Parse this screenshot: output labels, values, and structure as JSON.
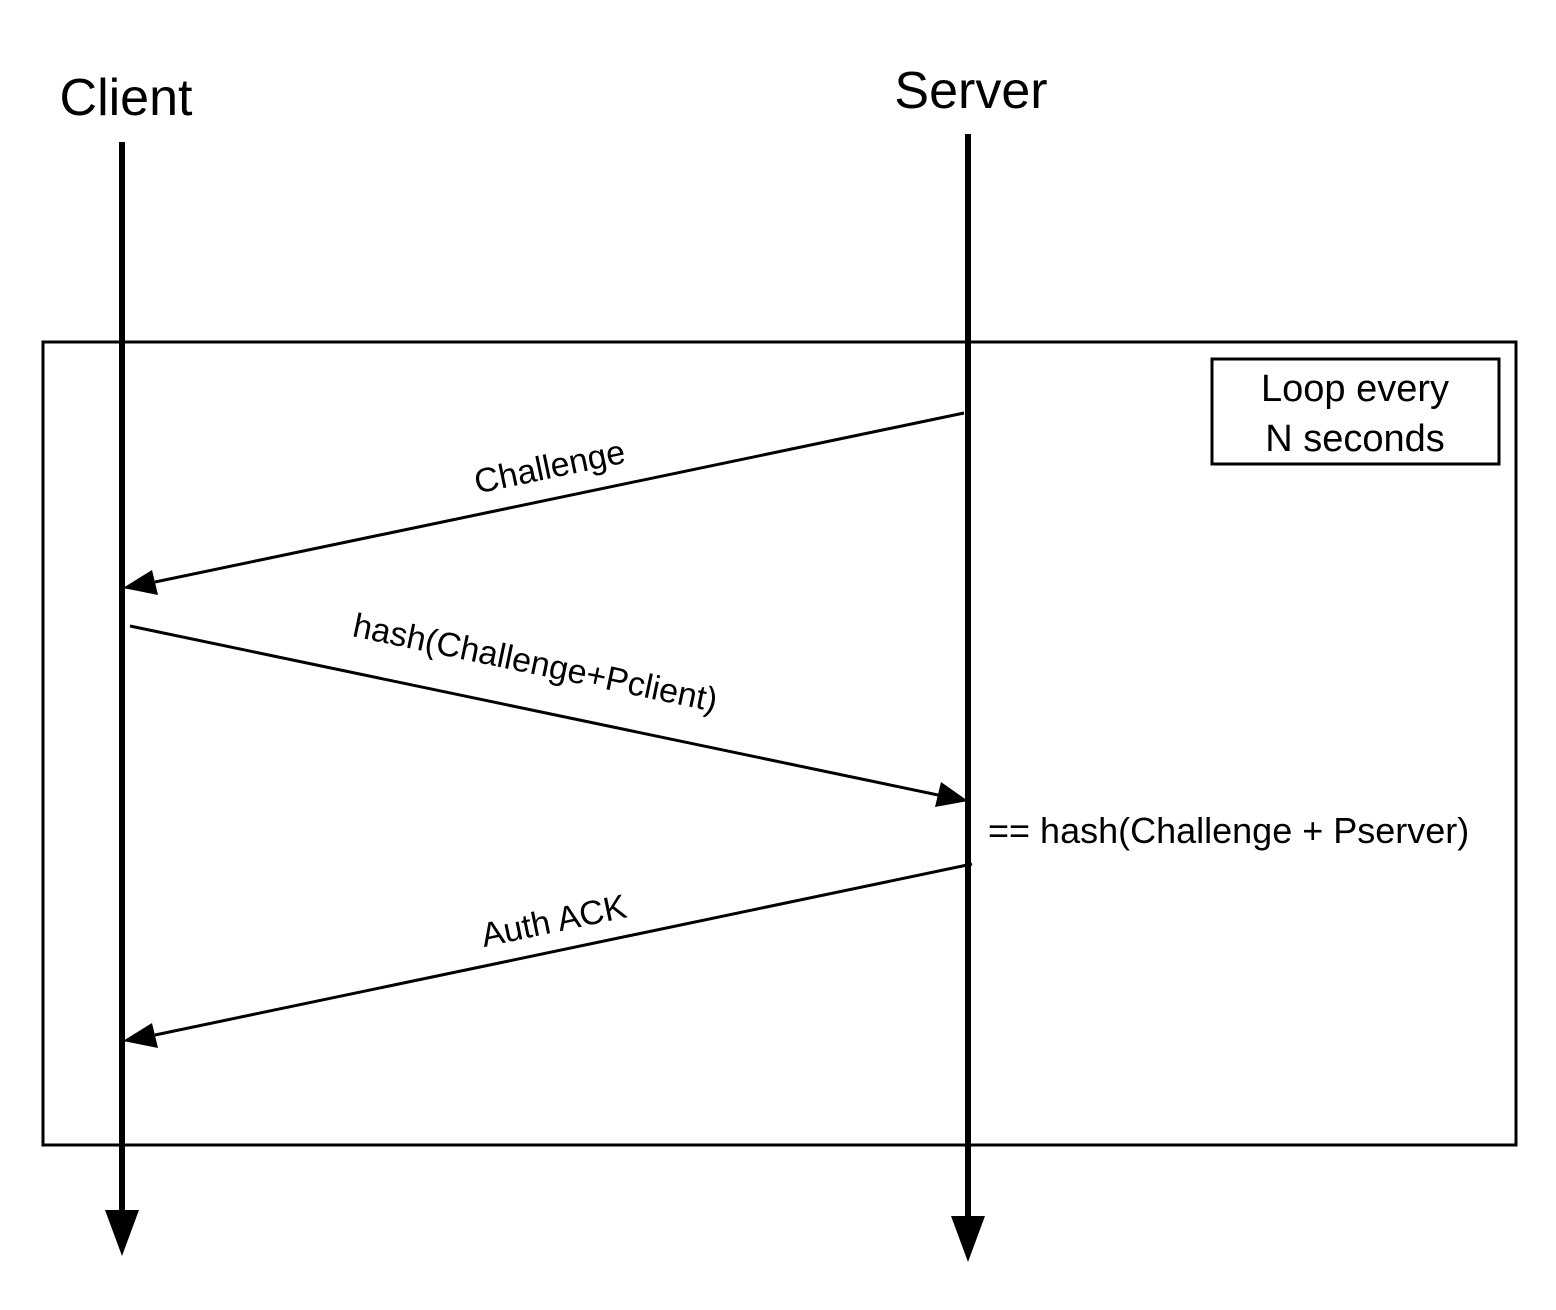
{
  "actors": [
    {
      "id": "client",
      "label": "Client"
    },
    {
      "id": "server",
      "label": "Server"
    }
  ],
  "loop": {
    "label_line1": "Loop every",
    "label_line2": "N seconds"
  },
  "messages": [
    {
      "id": "challenge",
      "from": "server",
      "to": "client",
      "label": "Challenge"
    },
    {
      "id": "hash-client",
      "from": "client",
      "to": "server",
      "label": "hash(Challenge+Pclient)"
    },
    {
      "id": "auth-ack",
      "from": "server",
      "to": "client",
      "label": "Auth ACK"
    }
  ],
  "note": {
    "text": "== hash(Challenge + Pserver)"
  }
}
